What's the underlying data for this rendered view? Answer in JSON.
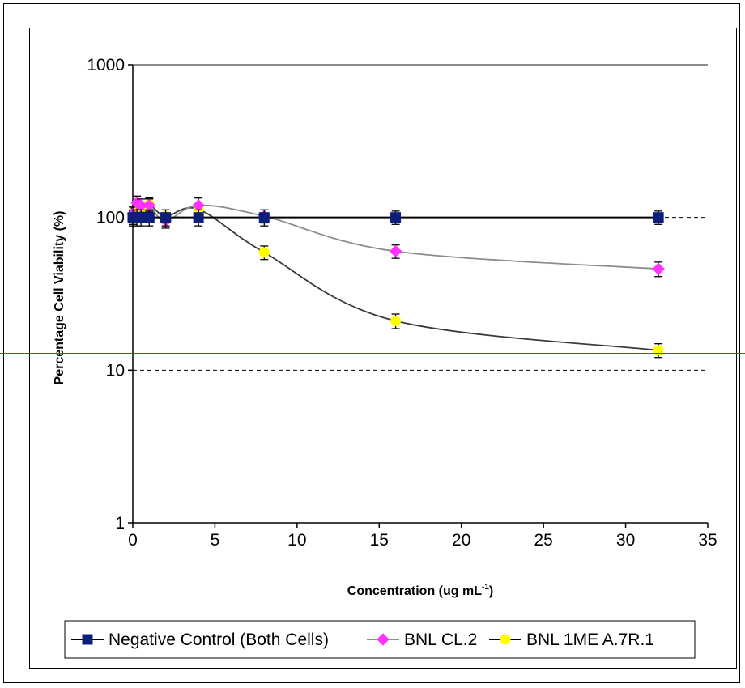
{
  "chart_data": {
    "type": "scatter",
    "title": "",
    "xlabel": "Concentration (ug mL",
    "xlabel_sup": "-1",
    "xlabel_close": ")",
    "ylabel": "Percentage Cell Viability (%)",
    "xlim": [
      0,
      35
    ],
    "ylim": [
      1,
      1000
    ],
    "yscale": "log",
    "x_ticks": [
      "0",
      "5",
      "10",
      "15",
      "20",
      "25",
      "30",
      "35"
    ],
    "y_ticks": [
      "1",
      "10",
      "100",
      "1000"
    ],
    "grid": "dashed at 10 and 100",
    "legend_position": "bottom",
    "series": [
      {
        "name": "Negative Control (Both Cells)",
        "color": "#0b1f7a",
        "line_color": "#000000",
        "marker": "square",
        "x": [
          0,
          0.25,
          0.5,
          1,
          2,
          4,
          8,
          16,
          32
        ],
        "y": [
          100,
          100,
          100,
          100,
          100,
          100,
          100,
          100,
          100
        ],
        "err": [
          12,
          12,
          12,
          12,
          12,
          12,
          12,
          10,
          10
        ]
      },
      {
        "name": "BNL CL.2",
        "color": "#ff33ff",
        "line_color": "#8c8c8c",
        "marker": "diamond",
        "x": [
          0,
          0.25,
          0.5,
          1,
          2,
          4,
          8,
          16,
          32
        ],
        "y": [
          105,
          125,
          120,
          120,
          95,
          120,
          102,
          60,
          46
        ],
        "err": [
          12,
          13,
          12,
          12,
          10,
          14,
          10,
          6,
          5
        ]
      },
      {
        "name": "BNL 1ME A.7R.1",
        "color": "#ffff00",
        "line_color": "#3a3a3a",
        "marker": "circle",
        "x": [
          0,
          0.125,
          0.25,
          0.5,
          1,
          2,
          4,
          8,
          16,
          32
        ],
        "y": [
          100,
          105,
          108,
          112,
          122,
          102,
          113,
          59,
          21,
          13.5
        ],
        "err": [
          10,
          10,
          10,
          10,
          12,
          10,
          10,
          6,
          2.3,
          1.4
        ]
      }
    ]
  }
}
